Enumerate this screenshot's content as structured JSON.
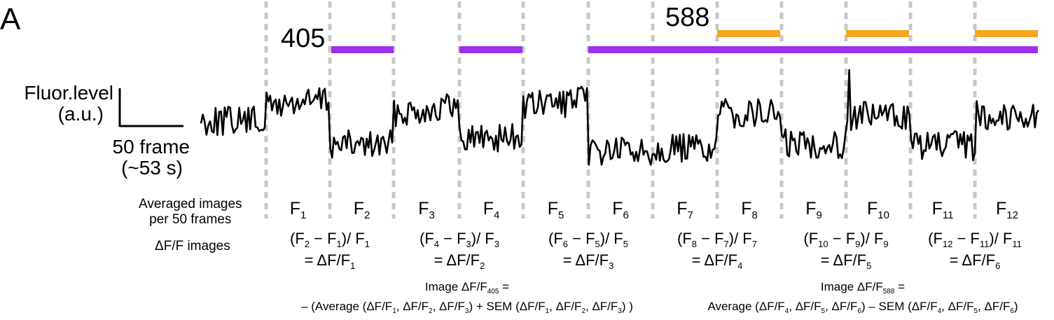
{
  "panel_letter": "A",
  "wavelength_labels": {
    "uv": "405",
    "amber": "588"
  },
  "colors": {
    "purple": "#9B30F0",
    "orange": "#F7A420",
    "trace": "#000000",
    "dashes": "#c8c8c8"
  },
  "scale_bar": {
    "y_label": {
      "line1": "Fluor.level",
      "line2": "(a.u.)"
    },
    "x_label": {
      "line1": "50 frame",
      "line2": "(~53 s)"
    }
  },
  "row_labels": {
    "averaged": {
      "line1": "Averaged images",
      "line2": "per 50 frames"
    },
    "dff": "ΔF/F images"
  },
  "frames": [
    {
      "base": "F",
      "sub": "1"
    },
    {
      "base": "F",
      "sub": "2"
    },
    {
      "base": "F",
      "sub": "3"
    },
    {
      "base": "F",
      "sub": "4"
    },
    {
      "base": "F",
      "sub": "5"
    },
    {
      "base": "F",
      "sub": "6"
    },
    {
      "base": "F",
      "sub": "7"
    },
    {
      "base": "F",
      "sub": "8"
    },
    {
      "base": "F",
      "sub": "9"
    },
    {
      "base": "F",
      "sub": "10"
    },
    {
      "base": "F",
      "sub": "11"
    },
    {
      "base": "F",
      "sub": "12"
    }
  ],
  "dff_formulas": [
    {
      "a": "2",
      "b": "1",
      "c": "1",
      "result": "1"
    },
    {
      "a": "4",
      "b": "3",
      "c": "3",
      "result": "2"
    },
    {
      "a": "6",
      "b": "5",
      "c": "5",
      "result": "3"
    },
    {
      "a": "8",
      "b": "7",
      "c": "7",
      "result": "4"
    },
    {
      "a": "10",
      "b": "9",
      "c": "9",
      "result": "5"
    },
    {
      "a": "12",
      "b": "11",
      "c": "11",
      "result": "6"
    }
  ],
  "summary_405": {
    "title": "Image ΔF/F",
    "title_sub": "405",
    "title_tail": " =",
    "formula": "– (Average (ΔF/F1, ΔF/F2, ΔF/F3) + SEM (ΔF/F1, ΔF/F2, ΔF/F3) )"
  },
  "summary_588": {
    "title": "Image ΔF/F",
    "title_sub": "588",
    "title_tail": " =",
    "formula": "Average (ΔF/F4, ΔF/F5, ΔF/F6) – SEM (ΔF/F4, ΔF/F5, ΔF/F6)"
  }
}
